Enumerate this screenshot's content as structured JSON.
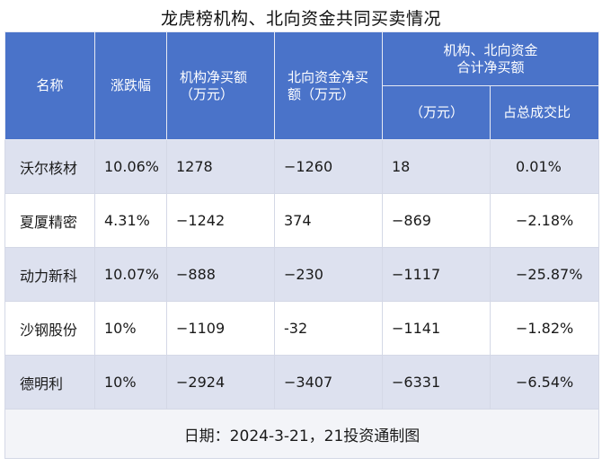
{
  "title": "龙虎榜机构、北向资金共同买卖情况",
  "headers": {
    "name": "名称",
    "change": "涨跌幅",
    "inst": "机构净买额\n（万元）",
    "north": "北向资金净买\n额（万元）",
    "combined_group": "机构、北向资金\n合计净买额",
    "combined_unit": "（万元）",
    "share": "占总成交比"
  },
  "rows": [
    {
      "name": "沃尔核材",
      "change": "10.06%",
      "inst": "1278",
      "north": "−1260",
      "combined": "18",
      "share": "0.01%"
    },
    {
      "name": "夏厦精密",
      "change": "4.31%",
      "inst": "−1242",
      "north": "374",
      "combined": "−869",
      "share": "−2.18%"
    },
    {
      "name": "动力新科",
      "change": "10.07%",
      "inst": "−888",
      "north": "−230",
      "combined": "−1117",
      "share": "−25.87%"
    },
    {
      "name": "沙钢股份",
      "change": "10%",
      "inst": "−1109",
      "north": "-32",
      "combined": "−1141",
      "share": "−1.82%"
    },
    {
      "name": "德明利",
      "change": "10%",
      "inst": "−2924",
      "north": "−3407",
      "combined": "−6331",
      "share": "−6.54%"
    }
  ],
  "footer": "日期：2024-3-21，21投资通制图"
}
